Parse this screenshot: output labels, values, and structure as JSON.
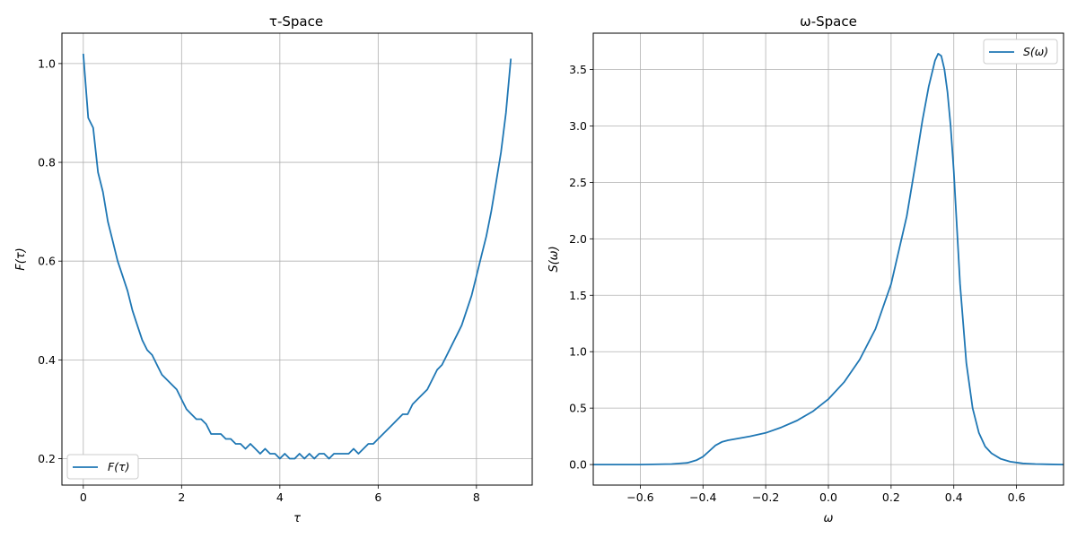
{
  "chart_data": [
    {
      "type": "line",
      "title": "τ-Space",
      "xlabel": "τ",
      "ylabel": "F(τ)",
      "xlim": [
        -0.435,
        9.135
      ],
      "ylim": [
        0.1465,
        1.0615
      ],
      "xticks": [
        0,
        2,
        4,
        6,
        8
      ],
      "xtick_labels": [
        "0",
        "2",
        "4",
        "6",
        "8"
      ],
      "yticks": [
        0.2,
        0.4,
        0.6,
        0.8,
        1.0
      ],
      "ytick_labels": [
        "0.2",
        "0.4",
        "0.6",
        "0.8",
        "1.0"
      ],
      "grid": true,
      "legend_position": "lower-left",
      "color": "#1f77b4",
      "series": [
        {
          "name": "F(τ)",
          "x": [
            0.0,
            0.1,
            0.2,
            0.3,
            0.4,
            0.5,
            0.6,
            0.7,
            0.8,
            0.9,
            1.0,
            1.1,
            1.2,
            1.3,
            1.4,
            1.5,
            1.6,
            1.7,
            1.8,
            1.9,
            2.0,
            2.1,
            2.2,
            2.3,
            2.4,
            2.5,
            2.6,
            2.7,
            2.8,
            2.9,
            3.0,
            3.1,
            3.2,
            3.3,
            3.4,
            3.5,
            3.6,
            3.7,
            3.8,
            3.9,
            4.0,
            4.1,
            4.2,
            4.3,
            4.4,
            4.5,
            4.6,
            4.7,
            4.8,
            4.9,
            5.0,
            5.1,
            5.2,
            5.3,
            5.4,
            5.5,
            5.6,
            5.7,
            5.8,
            5.9,
            6.0,
            6.1,
            6.2,
            6.3,
            6.4,
            6.5,
            6.6,
            6.7,
            6.8,
            6.9,
            7.0,
            7.1,
            7.2,
            7.3,
            7.4,
            7.5,
            7.6,
            7.7,
            7.8,
            7.9,
            8.0,
            8.1,
            8.2,
            8.3,
            8.4,
            8.5,
            8.6,
            8.7
          ],
          "y": [
            1.02,
            0.89,
            0.87,
            0.78,
            0.74,
            0.68,
            0.64,
            0.6,
            0.57,
            0.54,
            0.5,
            0.47,
            0.44,
            0.42,
            0.41,
            0.39,
            0.37,
            0.36,
            0.35,
            0.34,
            0.32,
            0.3,
            0.29,
            0.28,
            0.28,
            0.27,
            0.25,
            0.25,
            0.25,
            0.24,
            0.24,
            0.23,
            0.23,
            0.22,
            0.23,
            0.22,
            0.21,
            0.22,
            0.21,
            0.21,
            0.2,
            0.21,
            0.2,
            0.2,
            0.21,
            0.2,
            0.21,
            0.2,
            0.21,
            0.21,
            0.2,
            0.21,
            0.21,
            0.21,
            0.21,
            0.22,
            0.21,
            0.22,
            0.23,
            0.23,
            0.24,
            0.25,
            0.26,
            0.27,
            0.28,
            0.29,
            0.29,
            0.31,
            0.32,
            0.33,
            0.34,
            0.36,
            0.38,
            0.39,
            0.41,
            0.43,
            0.45,
            0.47,
            0.5,
            0.53,
            0.57,
            0.61,
            0.65,
            0.7,
            0.76,
            0.82,
            0.9,
            1.01
          ]
        }
      ]
    },
    {
      "type": "line",
      "title": "ω-Space",
      "xlabel": "ω",
      "ylabel": "S(ω)",
      "xlim": [
        -0.75,
        0.75
      ],
      "ylim": [
        -0.182,
        3.822
      ],
      "xticks": [
        -0.6,
        -0.4,
        -0.2,
        0.0,
        0.2,
        0.4,
        0.6
      ],
      "xtick_labels": [
        "−0.6",
        "−0.4",
        "−0.2",
        "0.0",
        "0.2",
        "0.4",
        "0.6"
      ],
      "yticks": [
        0.0,
        0.5,
        1.0,
        1.5,
        2.0,
        2.5,
        3.0,
        3.5
      ],
      "ytick_labels": [
        "0.0",
        "0.5",
        "1.0",
        "1.5",
        "2.0",
        "2.5",
        "3.0",
        "3.5"
      ],
      "grid": true,
      "legend_position": "top-right",
      "color": "#1f77b4",
      "series": [
        {
          "name": "S(ω)",
          "x": [
            -0.75,
            -0.6,
            -0.5,
            -0.45,
            -0.42,
            -0.4,
            -0.38,
            -0.36,
            -0.34,
            -0.32,
            -0.3,
            -0.28,
            -0.25,
            -0.2,
            -0.15,
            -0.1,
            -0.05,
            0.0,
            0.05,
            0.1,
            0.15,
            0.2,
            0.25,
            0.28,
            0.3,
            0.32,
            0.34,
            0.35,
            0.36,
            0.37,
            0.38,
            0.39,
            0.4,
            0.42,
            0.44,
            0.46,
            0.48,
            0.5,
            0.52,
            0.55,
            0.58,
            0.62,
            0.66,
            0.7,
            0.75
          ],
          "y": [
            0.0,
            0.0,
            0.005,
            0.015,
            0.04,
            0.07,
            0.12,
            0.17,
            0.2,
            0.215,
            0.225,
            0.235,
            0.25,
            0.28,
            0.33,
            0.39,
            0.47,
            0.58,
            0.73,
            0.93,
            1.2,
            1.6,
            2.2,
            2.7,
            3.05,
            3.35,
            3.58,
            3.64,
            3.62,
            3.5,
            3.3,
            3.0,
            2.6,
            1.6,
            0.9,
            0.5,
            0.28,
            0.16,
            0.1,
            0.05,
            0.025,
            0.01,
            0.005,
            0.002,
            0.0
          ]
        }
      ]
    }
  ]
}
